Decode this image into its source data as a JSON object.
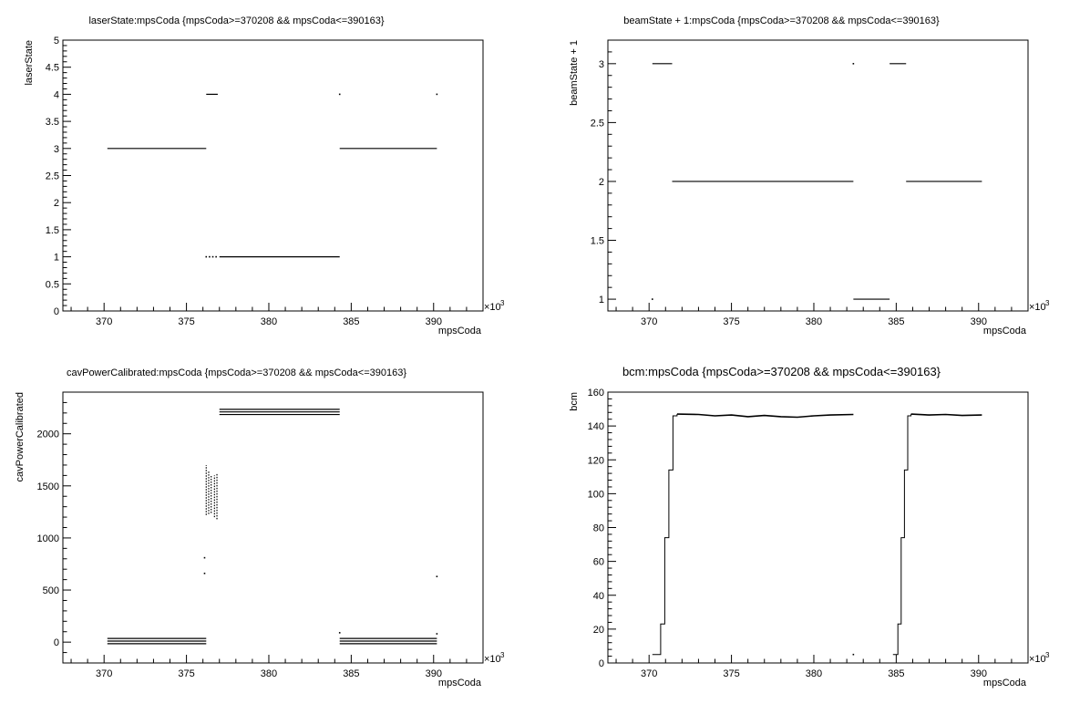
{
  "chart_data": [
    {
      "type": "scatter",
      "title": "laserState:mpsCoda {mpsCoda>=370208 && mpsCoda<=390163}",
      "xlabel": "mpsCoda",
      "ylabel": "laserState",
      "x_multiplier": "×10",
      "x_exponent": "3",
      "xlim": [
        367.5,
        393
      ],
      "ylim": [
        0,
        5
      ],
      "xticks": [
        370,
        375,
        380,
        385,
        390
      ],
      "yticks": [
        0,
        0.5,
        1,
        1.5,
        2,
        2.5,
        3,
        3.5,
        4,
        4.5,
        5
      ],
      "segments": [
        {
          "x0": 370.2,
          "x1": 376.2,
          "y": 3
        },
        {
          "x0": 376.2,
          "x1": 376.9,
          "y": 4
        },
        {
          "x0": 377.0,
          "x1": 384.3,
          "y": 1
        },
        {
          "x0": 384.3,
          "x1": 390.2,
          "y": 3
        }
      ],
      "points": [
        [
          376.2,
          1
        ],
        [
          376.4,
          1
        ],
        [
          376.6,
          1
        ],
        [
          376.8,
          1
        ],
        [
          384.3,
          4
        ],
        [
          390.2,
          4
        ]
      ]
    },
    {
      "type": "scatter",
      "title": "beamState + 1:mpsCoda {mpsCoda>=370208 && mpsCoda<=390163}",
      "xlabel": "mpsCoda",
      "ylabel": "beamState + 1",
      "x_multiplier": "×10",
      "x_exponent": "3",
      "xlim": [
        367.5,
        393
      ],
      "ylim": [
        0.9,
        3.2
      ],
      "xticks": [
        370,
        375,
        380,
        385,
        390
      ],
      "yticks": [
        1,
        1.5,
        2,
        2.5,
        3
      ],
      "segments": [
        {
          "x0": 370.2,
          "x1": 371.4,
          "y": 3
        },
        {
          "x0": 371.4,
          "x1": 382.4,
          "y": 2
        },
        {
          "x0": 382.4,
          "x1": 384.6,
          "y": 1
        },
        {
          "x0": 384.6,
          "x1": 385.6,
          "y": 3
        },
        {
          "x0": 385.6,
          "x1": 390.2,
          "y": 2
        }
      ],
      "points": [
        [
          370.2,
          1
        ],
        [
          382.4,
          3
        ]
      ]
    },
    {
      "type": "scatter",
      "title": "cavPowerCalibrated:mpsCoda {mpsCoda>=370208 && mpsCoda<=390163}",
      "xlabel": "mpsCoda",
      "ylabel": "cavPowerCalibrated",
      "x_multiplier": "×10",
      "x_exponent": "3",
      "xlim": [
        367.5,
        393
      ],
      "ylim": [
        -200,
        2400
      ],
      "xticks": [
        370,
        375,
        380,
        385,
        390
      ],
      "yticks": [
        0,
        500,
        1000,
        1500,
        2000
      ],
      "segments": [
        {
          "x0": 370.2,
          "x1": 376.2,
          "y": 35
        },
        {
          "x0": 370.2,
          "x1": 376.2,
          "y": 10
        },
        {
          "x0": 370.2,
          "x1": 376.2,
          "y": -15
        },
        {
          "x0": 377.0,
          "x1": 384.3,
          "y": 2235
        },
        {
          "x0": 377.0,
          "x1": 384.3,
          "y": 2210
        },
        {
          "x0": 377.0,
          "x1": 384.3,
          "y": 2185
        },
        {
          "x0": 384.3,
          "x1": 390.2,
          "y": 35
        },
        {
          "x0": 384.3,
          "x1": 390.2,
          "y": 10
        },
        {
          "x0": 384.3,
          "x1": 390.2,
          "y": -15
        }
      ],
      "columns": [
        {
          "x": 376.2,
          "y0": 1220,
          "y1": 1700
        },
        {
          "x": 376.35,
          "y0": 1230,
          "y1": 1650
        },
        {
          "x": 376.5,
          "y0": 1240,
          "y1": 1600
        },
        {
          "x": 376.7,
          "y0": 1200,
          "y1": 1600
        },
        {
          "x": 376.85,
          "y0": 1180,
          "y1": 1620
        }
      ],
      "points": [
        [
          376.1,
          810
        ],
        [
          376.1,
          660
        ],
        [
          390.2,
          630
        ],
        [
          390.2,
          80
        ],
        [
          384.3,
          90
        ]
      ]
    },
    {
      "type": "scatter",
      "title": "bcm:mpsCoda {mpsCoda>=370208 && mpsCoda<=390163}",
      "xlabel": "mpsCoda",
      "ylabel": "bcm",
      "x_multiplier": "×10",
      "x_exponent": "3",
      "xlim": [
        367.5,
        393
      ],
      "ylim": [
        0,
        160
      ],
      "xticks": [
        370,
        375,
        380,
        385,
        390
      ],
      "yticks": [
        0,
        20,
        40,
        60,
        80,
        100,
        120,
        140,
        160
      ],
      "steps": [
        [
          370.2,
          5
        ],
        [
          370.7,
          5
        ],
        [
          370.7,
          23
        ],
        [
          370.95,
          23
        ],
        [
          370.95,
          74
        ],
        [
          371.2,
          74
        ],
        [
          371.2,
          114
        ],
        [
          371.45,
          114
        ],
        [
          371.45,
          146
        ],
        [
          371.7,
          146
        ],
        [
          371.7,
          147
        ]
      ],
      "plateau": [
        [
          371.7,
          147
        ],
        [
          373,
          146.8
        ],
        [
          374,
          146
        ],
        [
          375,
          146.5
        ],
        [
          376,
          145.5
        ],
        [
          377,
          146.2
        ],
        [
          378,
          145.5
        ],
        [
          379,
          145.2
        ],
        [
          380,
          146
        ],
        [
          381,
          146.5
        ],
        [
          382.4,
          146.8
        ]
      ],
      "steps2": [
        [
          384.8,
          5
        ],
        [
          385.1,
          5
        ],
        [
          385.1,
          23
        ],
        [
          385.3,
          23
        ],
        [
          385.3,
          74
        ],
        [
          385.5,
          74
        ],
        [
          385.5,
          114
        ],
        [
          385.7,
          114
        ],
        [
          385.7,
          146
        ],
        [
          385.9,
          146
        ],
        [
          385.9,
          147
        ]
      ],
      "plateau2": [
        [
          385.9,
          147
        ],
        [
          387,
          146.5
        ],
        [
          388,
          146.8
        ],
        [
          389,
          146.2
        ],
        [
          390.2,
          146.5
        ]
      ],
      "points": [
        [
          382.4,
          5
        ]
      ]
    }
  ]
}
